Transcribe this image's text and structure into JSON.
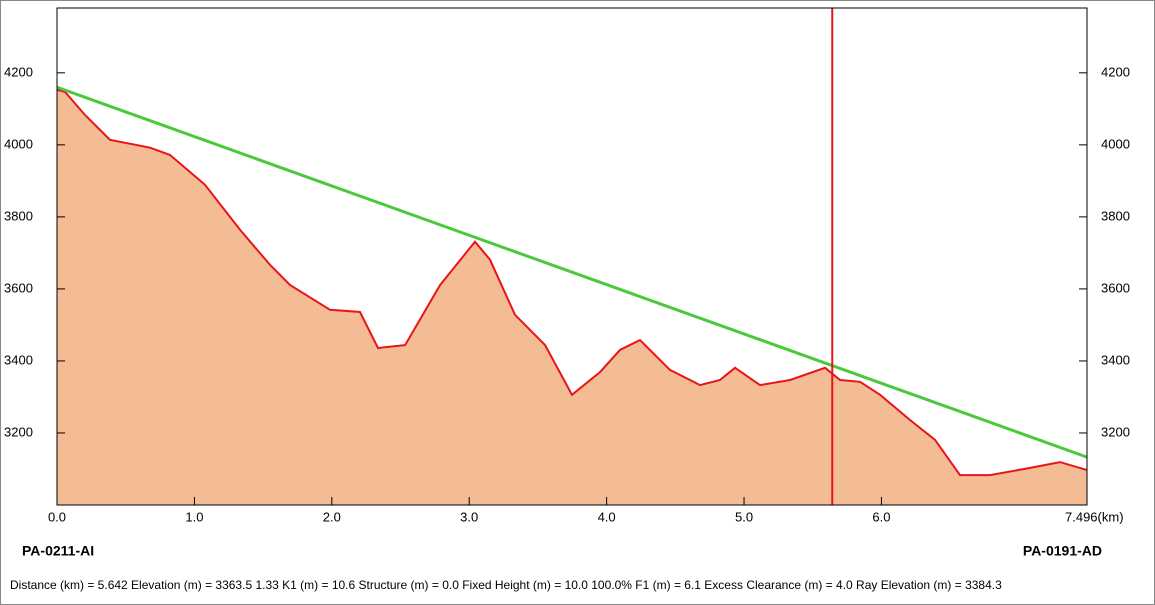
{
  "chart_data": {
    "type": "area",
    "x": [
      0,
      0.058,
      0.204,
      0.386,
      0.677,
      0.822,
      1.077,
      1.332,
      1.55,
      1.696,
      1.987,
      2.205,
      2.336,
      2.533,
      2.788,
      3.042,
      3.151,
      3.333,
      3.552,
      3.748,
      3.952,
      4.098,
      4.243,
      4.461,
      4.68,
      4.825,
      4.934,
      5.116,
      5.335,
      5.59,
      5.699,
      5.844,
      5.99,
      6.208,
      6.39,
      6.572,
      6.79,
      7.082,
      7.3,
      7.496
    ],
    "values": [
      4153,
      4147,
      4083,
      4014,
      3992,
      3972,
      3889,
      3764,
      3667,
      3611,
      3542,
      3536,
      3436,
      3444,
      3611,
      3731,
      3681,
      3528,
      3444,
      3306,
      3369,
      3431,
      3458,
      3375,
      3333,
      3347,
      3381,
      3333,
      3347,
      3381,
      3347,
      3342,
      3306,
      3236,
      3181,
      3083,
      3083,
      3103,
      3119,
      3097
    ],
    "color": "#f4bc94",
    "line_color": "#e8141c",
    "ray": {
      "x": [
        0,
        7.496
      ],
      "values": [
        4160,
        3133
      ],
      "color": "#4cc83c"
    },
    "cursor_x": 5.642,
    "cursor_color": "#e8141c",
    "xlim": [
      0,
      7.496
    ],
    "ylim": [
      3000,
      4380
    ],
    "xticks": [
      {
        "value": 0,
        "label": "0.0"
      },
      {
        "value": 1,
        "label": "1.0"
      },
      {
        "value": 2,
        "label": "2.0"
      },
      {
        "value": 3,
        "label": "3.0"
      },
      {
        "value": 4,
        "label": "4.0"
      },
      {
        "value": 5,
        "label": "5.0"
      },
      {
        "value": 6,
        "label": "6.0"
      },
      {
        "value": 7.496,
        "label": "7.496(km)"
      }
    ],
    "yticks": [
      3200,
      3400,
      3600,
      3800,
      4000,
      4200
    ],
    "left_site": "PA-0211-AI",
    "right_site": "PA-0191-AD",
    "status": "Distance (km) = 5.642  Elevation (m) = 3363.5  1.33 K1 (m) = 10.6  Structure (m) = 0.0  Fixed Height (m) = 10.0  100.0% F1 (m) = 6.1  Excess Clearance (m) = 4.0  Ray Elevation (m) = 3384.3"
  }
}
